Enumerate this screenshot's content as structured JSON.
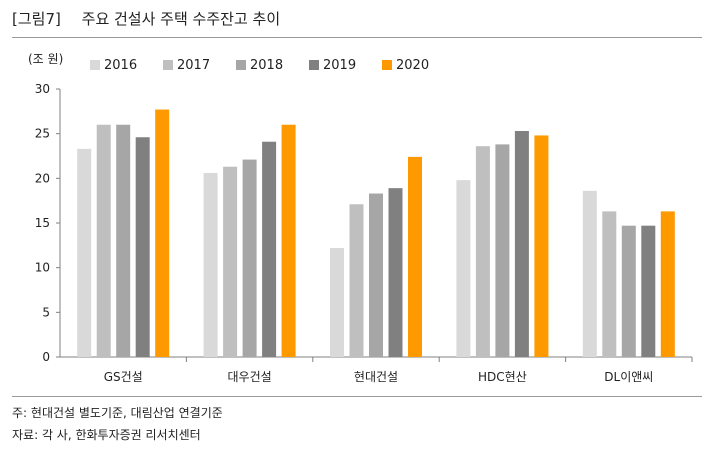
{
  "header": {
    "figure_number": "[그림7]",
    "title": "주요 건설사 주택 수주잔고 추이"
  },
  "notes": {
    "note": "주: 현대건설 별도기준, 대림산업 연결기준",
    "source": "자료: 각 사, 한화투자증권 리서치센터"
  },
  "chart_data": {
    "type": "bar",
    "unit_label": "(조 원)",
    "categories": [
      "GS건설",
      "대우건설",
      "현대건설",
      "HDC현산",
      "DL이앤씨"
    ],
    "series": [
      {
        "name": "2016",
        "color": "#d9d9d9",
        "values": [
          23.3,
          20.6,
          12.2,
          19.8,
          18.6
        ]
      },
      {
        "name": "2017",
        "color": "#bfbfbf",
        "values": [
          26.0,
          21.3,
          17.1,
          23.6,
          16.3
        ]
      },
      {
        "name": "2018",
        "color": "#a6a6a6",
        "values": [
          26.0,
          22.1,
          18.3,
          23.8,
          14.7
        ]
      },
      {
        "name": "2019",
        "color": "#808080",
        "values": [
          24.6,
          24.1,
          18.9,
          25.3,
          14.7
        ]
      },
      {
        "name": "2020",
        "color": "#ff9900",
        "values": [
          27.7,
          26.0,
          22.4,
          24.8,
          16.3
        ]
      }
    ],
    "yticks": [
      "0",
      "5",
      "10",
      "15",
      "20",
      "25",
      "30"
    ],
    "ylim": [
      0,
      30
    ],
    "grid": false,
    "legend_position": "top"
  }
}
